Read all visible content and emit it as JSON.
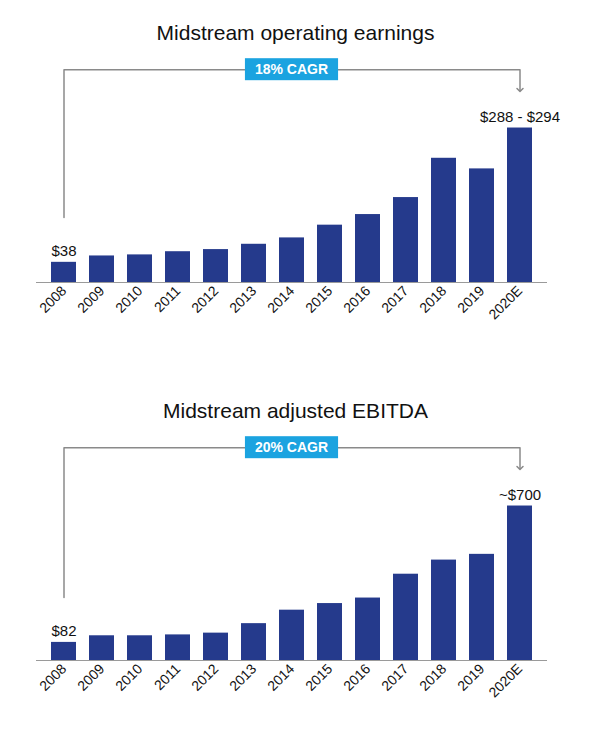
{
  "chart_data": [
    {
      "type": "bar",
      "title": "Midstream operating earnings",
      "annotation": "18% CAGR",
      "categories": [
        "2008",
        "2009",
        "2010",
        "2011",
        "2012",
        "2013",
        "2014",
        "2015",
        "2016",
        "2017",
        "2018",
        "2019",
        "2020E"
      ],
      "values": [
        38,
        50,
        52,
        58,
        62,
        72,
        84,
        108,
        128,
        160,
        234,
        214,
        291
      ],
      "value_labels": [
        "$38",
        null,
        null,
        null,
        null,
        null,
        null,
        null,
        null,
        null,
        null,
        null,
        "$288 - $294"
      ],
      "color": "#253a8c",
      "tick_labels": "x"
    },
    {
      "type": "bar",
      "title": "Midstream adjusted EBITDA",
      "annotation": "20% CAGR",
      "categories": [
        "2008",
        "2009",
        "2010",
        "2011",
        "2012",
        "2013",
        "2014",
        "2015",
        "2016",
        "2017",
        "2018",
        "2019",
        "2020E"
      ],
      "values": [
        82,
        112,
        112,
        116,
        124,
        167,
        228,
        258,
        283,
        391,
        455,
        481,
        700
      ],
      "value_labels": [
        "$82",
        null,
        null,
        null,
        null,
        null,
        null,
        null,
        null,
        null,
        null,
        null,
        "~$700"
      ],
      "color": "#253a8c",
      "tick_labels": "x"
    }
  ]
}
